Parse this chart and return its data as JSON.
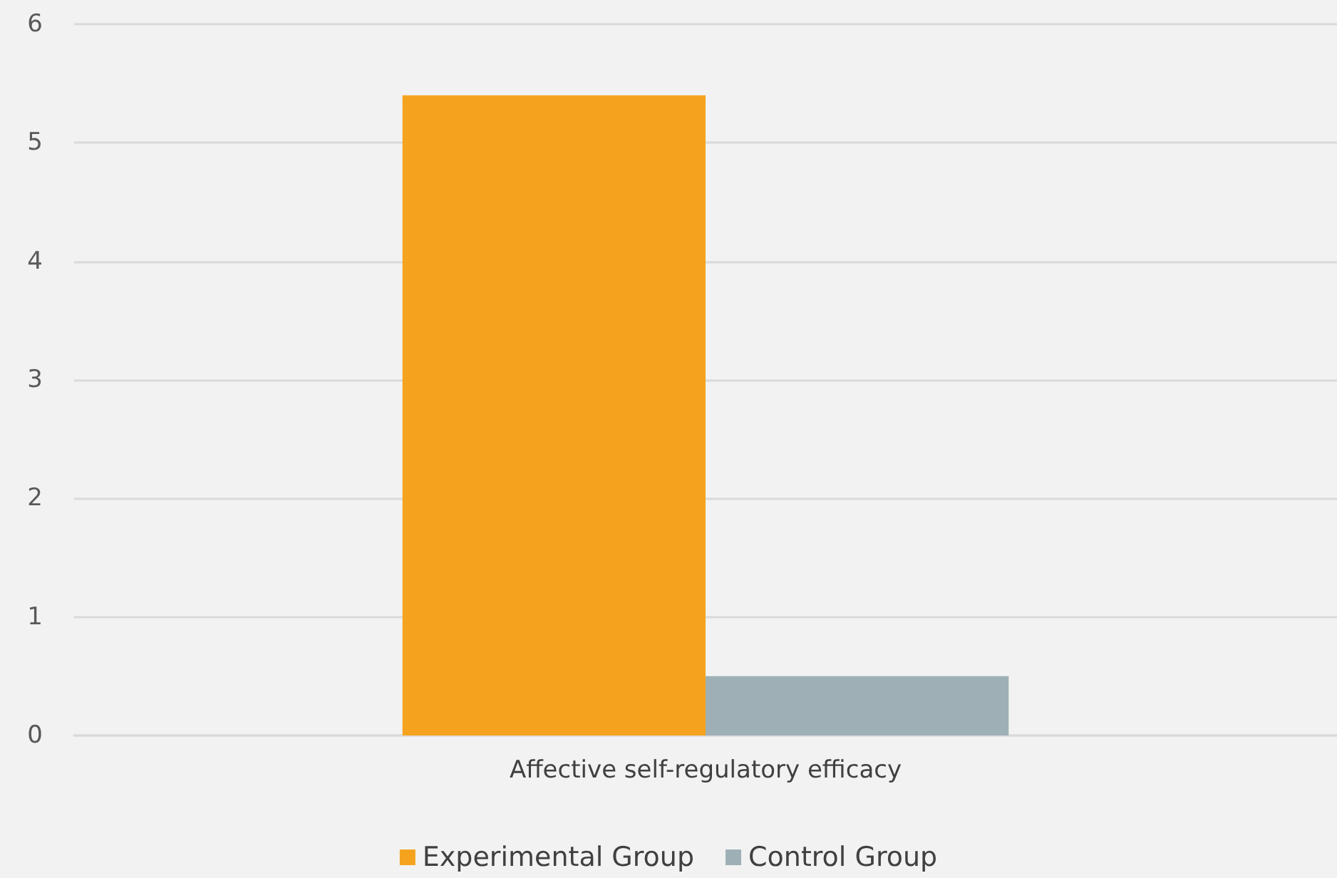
{
  "chart_data": {
    "type": "bar",
    "categories": [
      "Affective self-regulatory efficacy"
    ],
    "series": [
      {
        "name": "Experimental Group",
        "color": "#f5a31e",
        "values": [
          5.4
        ]
      },
      {
        "name": "Control Group",
        "color": "#9eb0b5",
        "values": [
          0.5
        ]
      }
    ],
    "ylim": [
      0,
      6
    ],
    "yticks": [
      0,
      1,
      2,
      3,
      4,
      5,
      6
    ],
    "grid": "y",
    "legend": "bottom"
  }
}
